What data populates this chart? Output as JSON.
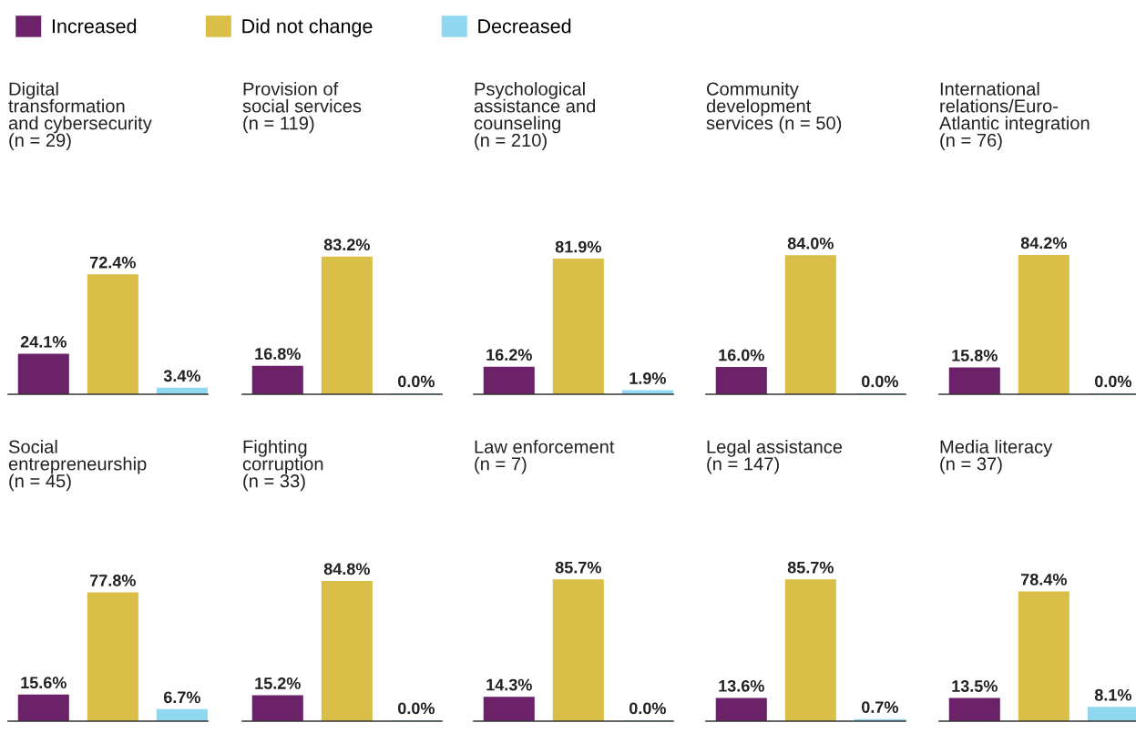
{
  "chart_data": [
    {
      "type": "bar",
      "title": "Digital\ntransformation\nand cybersecurity\n(n = 29)",
      "categories": [
        null
      ],
      "legend": "top",
      "tick_labels": false,
      "series": [
        {
          "name": "Increased",
          "color": "#6b2268",
          "values": [
            24.1
          ],
          "value_labels": [
            "24.1%"
          ]
        },
        {
          "name": "Did not change",
          "color": "#d9bf48",
          "values": [
            72.4
          ],
          "value_labels": [
            "72.4%"
          ]
        },
        {
          "name": "Decreased",
          "color": "#8fd8ef",
          "values": [
            3.4
          ],
          "value_labels": [
            "3.4%"
          ]
        }
      ]
    },
    {
      "type": "bar",
      "title": "Provision of\nsocial services\n(n = 119)",
      "categories": [
        null
      ],
      "tick_labels": false,
      "series": [
        {
          "color": "#6b2268",
          "values": [
            16.8
          ],
          "value_labels": [
            "16.8%"
          ]
        },
        {
          "color": "#d9bf48",
          "values": [
            83.2
          ],
          "value_labels": [
            "83.2%"
          ]
        },
        {
          "color": "#8fd8ef",
          "values": [
            0.0
          ],
          "value_labels": [
            "0.0%"
          ]
        }
      ]
    },
    {
      "type": "bar",
      "title": "Psychological\nassistance and\ncounseling\n(n = 210)",
      "categories": [
        null
      ],
      "tick_labels": false,
      "series": [
        {
          "color": "#6b2268",
          "values": [
            16.2
          ],
          "value_labels": [
            "16.2%"
          ]
        },
        {
          "color": "#d9bf48",
          "values": [
            81.9
          ],
          "value_labels": [
            "81.9%"
          ]
        },
        {
          "color": "#8fd8ef",
          "values": [
            1.9
          ],
          "value_labels": [
            "1.9%"
          ]
        }
      ]
    },
    {
      "type": "bar",
      "title": "Community\ndevelopment\nservices (n = 50)",
      "categories": [
        null
      ],
      "tick_labels": false,
      "series": [
        {
          "color": "#6b2268",
          "values": [
            16.0
          ],
          "value_labels": [
            "16.0%"
          ]
        },
        {
          "color": "#d9bf48",
          "values": [
            84.0
          ],
          "value_labels": [
            "84.0%"
          ]
        },
        {
          "color": "#8fd8ef",
          "values": [
            0.0
          ],
          "value_labels": [
            "0.0%"
          ]
        }
      ]
    },
    {
      "type": "bar",
      "title": "International\nrelations/Euro-\nAtlantic integration\n(n = 76)",
      "categories": [
        null
      ],
      "tick_labels": false,
      "series": [
        {
          "color": "#6b2268",
          "values": [
            15.8
          ],
          "value_labels": [
            "15.8%"
          ]
        },
        {
          "color": "#d9bf48",
          "values": [
            84.2
          ],
          "value_labels": [
            "84.2%"
          ]
        },
        {
          "color": "#8fd8ef",
          "values": [
            0.0
          ],
          "value_labels": [
            "0.0%"
          ]
        }
      ]
    },
    {
      "type": "bar",
      "title": "Social\nentrepreneurship\n(n = 45)",
      "categories": [
        null
      ],
      "tick_labels": false,
      "series": [
        {
          "color": "#6b2268",
          "values": [
            15.6
          ],
          "value_labels": [
            "15.6%"
          ]
        },
        {
          "color": "#d9bf48",
          "values": [
            77.8
          ],
          "value_labels": [
            "77.8%"
          ]
        },
        {
          "color": "#8fd8ef",
          "values": [
            6.7
          ],
          "value_labels": [
            "6.7%"
          ]
        }
      ]
    },
    {
      "type": "bar",
      "title": "Fighting\ncorruption\n(n = 33)",
      "categories": [
        null
      ],
      "tick_labels": false,
      "series": [
        {
          "color": "#6b2268",
          "values": [
            15.2
          ],
          "value_labels": [
            "15.2%"
          ]
        },
        {
          "color": "#d9bf48",
          "values": [
            84.8
          ],
          "value_labels": [
            "84.8%"
          ]
        },
        {
          "color": "#8fd8ef",
          "values": [
            0.0
          ],
          "value_labels": [
            "0.0%"
          ]
        }
      ]
    },
    {
      "type": "bar",
      "title": "Law enforcement\n(n = 7)",
      "categories": [
        null
      ],
      "tick_labels": false,
      "series": [
        {
          "color": "#6b2268",
          "values": [
            14.3
          ],
          "value_labels": [
            "14.3%"
          ]
        },
        {
          "color": "#d9bf48",
          "values": [
            85.7
          ],
          "value_labels": [
            "85.7%"
          ]
        },
        {
          "color": "#8fd8ef",
          "values": [
            0.0
          ],
          "value_labels": [
            "0.0%"
          ]
        }
      ]
    },
    {
      "type": "bar",
      "title": "Legal assistance\n(n = 147)",
      "categories": [
        null
      ],
      "tick_labels": false,
      "series": [
        {
          "color": "#6b2268",
          "values": [
            13.6
          ],
          "value_labels": [
            "13.6%"
          ]
        },
        {
          "color": "#d9bf48",
          "values": [
            85.7
          ],
          "value_labels": [
            "85.7%"
          ]
        },
        {
          "color": "#8fd8ef",
          "values": [
            0.7
          ],
          "value_labels": [
            "0.7%"
          ]
        }
      ]
    },
    {
      "type": "bar",
      "title": "Media literacy\n(n = 37)",
      "categories": [
        null
      ],
      "tick_labels": false,
      "series": [
        {
          "color": "#6b2268",
          "values": [
            13.5
          ],
          "value_labels": [
            "13.5%"
          ]
        },
        {
          "color": "#d9bf48",
          "values": [
            78.4
          ],
          "value_labels": [
            "78.4%"
          ]
        },
        {
          "color": "#8fd8ef",
          "values": [
            8.1
          ],
          "value_labels": [
            "8.1%"
          ]
        }
      ]
    }
  ]
}
